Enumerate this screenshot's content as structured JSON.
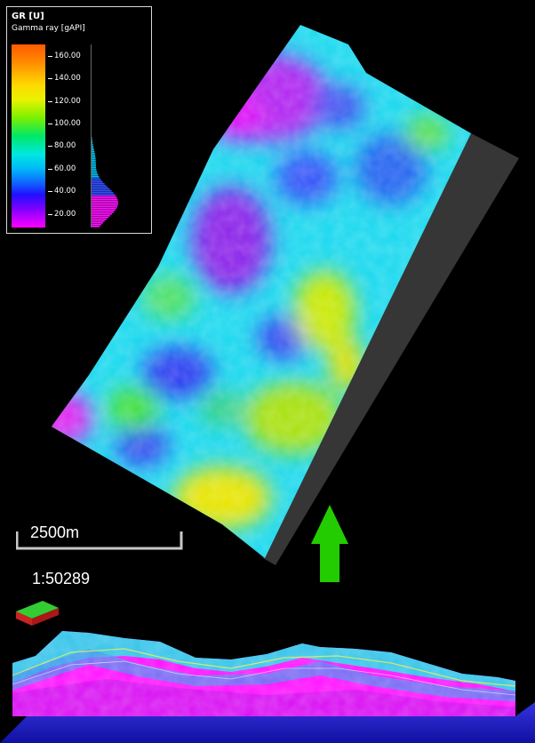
{
  "legend": {
    "title": "GR [U]",
    "subtitle": "Gamma ray [gAPI]",
    "ticks": [
      {
        "label": "160.00",
        "value": 160
      },
      {
        "label": "140.00",
        "value": 140
      },
      {
        "label": "120.00",
        "value": 120
      },
      {
        "label": "100.00",
        "value": 100
      },
      {
        "label": "80.00",
        "value": 80
      },
      {
        "label": "60.00",
        "value": 60
      },
      {
        "label": "40.00",
        "value": 40
      },
      {
        "label": "20.00",
        "value": 20
      }
    ],
    "range": [
      8,
      170
    ]
  },
  "scale": {
    "label": "2500m",
    "ratio": "1:50289"
  },
  "colors": {
    "background": "#000000",
    "panel_border": "#d8d8d8",
    "north_arrow": "#22cc00",
    "fault_surface": "#3a3a3a",
    "base_surface": "#2222cc"
  },
  "icons": {
    "north_arrow": "north-arrow-icon",
    "axis_orientation": "axis-orientation-icon"
  }
}
